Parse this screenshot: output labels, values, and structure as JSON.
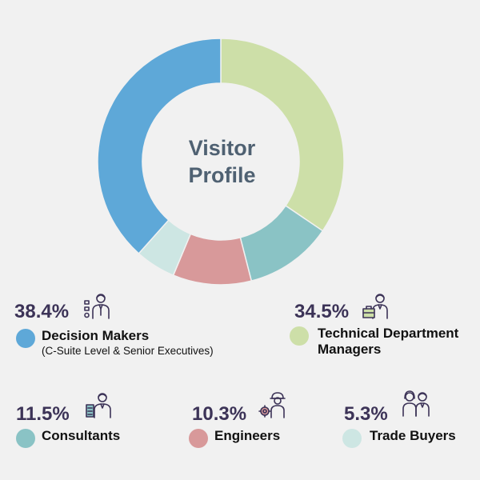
{
  "chart_data": {
    "type": "pie",
    "title": "Visitor Profile",
    "series": [
      {
        "name": "Decision Makers",
        "value": 38.4,
        "label": "38.4%",
        "sublabel": "(C-Suite Level & Senior Executives)",
        "color": "#5ea8d8",
        "icon": "executive-icon"
      },
      {
        "name": "Technical Department Managers",
        "value": 34.5,
        "label": "34.5%",
        "sublabel": "",
        "color": "#cddfa8",
        "icon": "manager-briefcase-icon"
      },
      {
        "name": "Consultants",
        "value": 11.5,
        "label": "11.5%",
        "sublabel": "",
        "color": "#8ac3c5",
        "icon": "consultant-icon"
      },
      {
        "name": "Engineers",
        "value": 10.3,
        "label": "10.3%",
        "sublabel": "",
        "color": "#d8999a",
        "icon": "engineer-gear-icon"
      },
      {
        "name": "Trade Buyers",
        "value": 5.3,
        "label": "5.3%",
        "sublabel": "",
        "color": "#cde6e3",
        "icon": "trade-buyers-icon"
      }
    ]
  },
  "title_lines": [
    "Visitor",
    "Profile"
  ]
}
